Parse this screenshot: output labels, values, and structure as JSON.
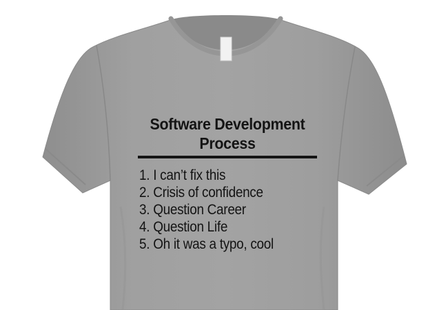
{
  "shirt": {
    "color": "#9b9b9b",
    "collar_color": "#8f8f8f",
    "ink_color": "#141414"
  },
  "print": {
    "title_line1": "Software Development",
    "title_line2": "Process",
    "steps": [
      "1. I can’t fix this",
      "2. Crisis of confidence",
      "3. Question Career",
      "4. Question Life",
      "5. Oh it was a typo, cool"
    ]
  }
}
